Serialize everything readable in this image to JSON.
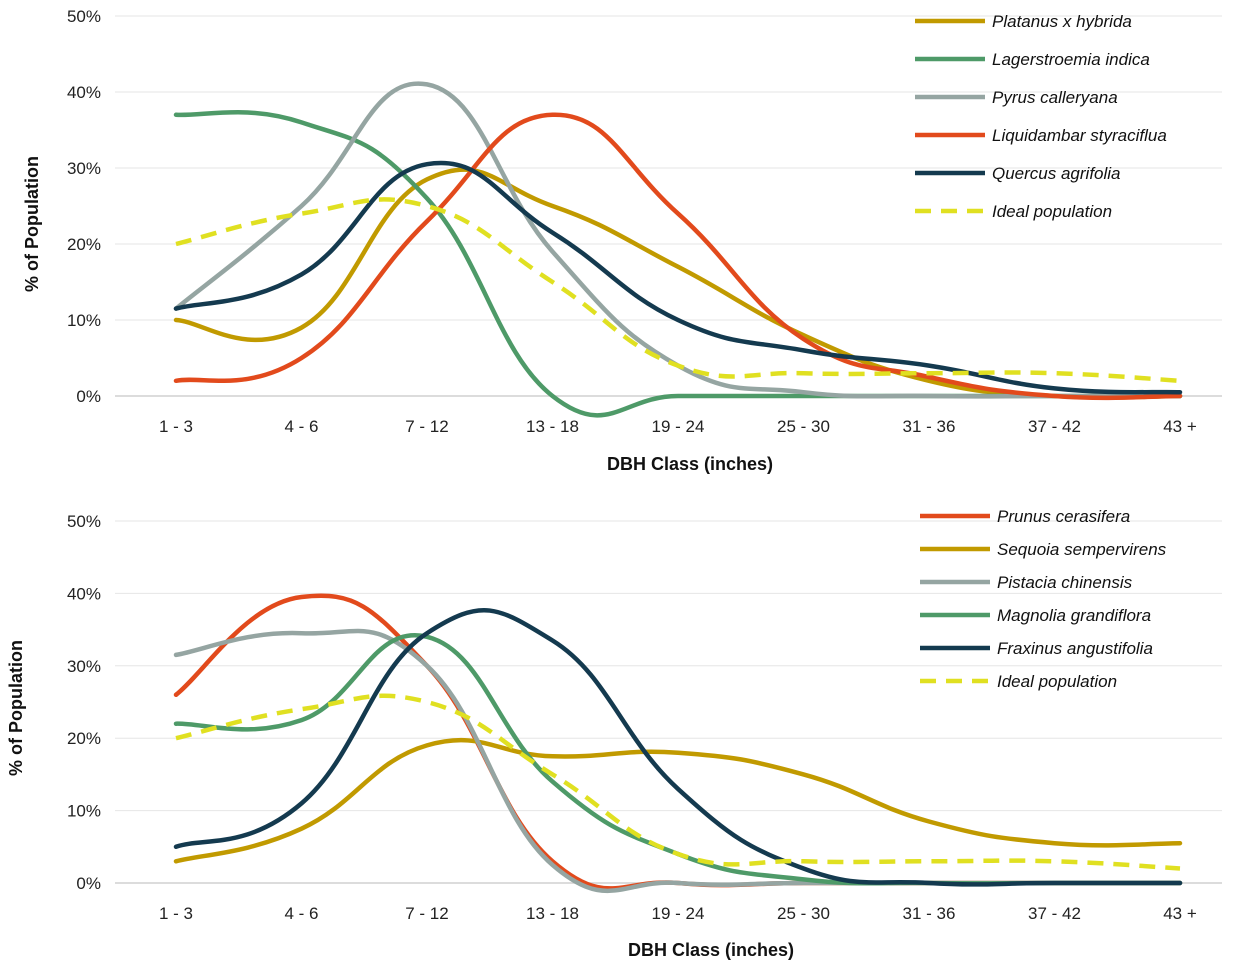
{
  "chart_data": [
    {
      "type": "line",
      "smooth": true,
      "title": "",
      "xlabel": "DBH Class (inches)",
      "ylabel": "% of Population",
      "categories": [
        "1 - 3",
        "4 - 6",
        "7 - 12",
        "13 - 18",
        "19 - 24",
        "25 - 30",
        "31 - 36",
        "37 - 42",
        "43 +"
      ],
      "ylim": [
        0,
        50
      ],
      "yticks": [
        0,
        10,
        20,
        30,
        40,
        50
      ],
      "ytick_labels": [
        "0%",
        "10%",
        "20%",
        "30%",
        "40%",
        "50%"
      ],
      "grid": true,
      "legend_position": "top-right",
      "series": [
        {
          "name": "Platanus x hybrida",
          "color": "#C19A00",
          "dash": false,
          "values": [
            10,
            9,
            28.5,
            25,
            17,
            8,
            2,
            0,
            0
          ]
        },
        {
          "name": "Lagerstroemia indica",
          "color": "#4E9A68",
          "dash": false,
          "values": [
            37,
            36,
            26,
            0,
            0,
            0,
            0,
            0,
            0
          ]
        },
        {
          "name": "Pyrus calleryana",
          "color": "#95A5A2",
          "dash": false,
          "values": [
            11.5,
            25,
            41,
            19,
            4,
            0.5,
            0,
            0,
            0
          ]
        },
        {
          "name": "Liquidambar styraciflua",
          "color": "#E24A1C",
          "dash": false,
          "values": [
            2,
            5,
            23,
            37,
            24,
            7.5,
            2.5,
            0,
            0
          ]
        },
        {
          "name": "Quercus agrifolia",
          "color": "#143A4F",
          "dash": false,
          "values": [
            11.5,
            16,
            30.5,
            21.5,
            10,
            6,
            4,
            1,
            0.5
          ]
        },
        {
          "name": "Ideal population",
          "color": "#E0E021",
          "dash": true,
          "values": [
            20,
            24,
            25,
            15,
            4,
            3,
            3,
            3,
            2
          ]
        }
      ]
    },
    {
      "type": "line",
      "smooth": true,
      "title": "",
      "xlabel": "DBH Class (inches)",
      "ylabel": "% of Population",
      "categories": [
        "1 - 3",
        "4 - 6",
        "7 - 12",
        "13 - 18",
        "19 - 24",
        "25 - 30",
        "31 - 36",
        "37 - 42",
        "43 +"
      ],
      "ylim": [
        0,
        50
      ],
      "yticks": [
        0,
        10,
        20,
        30,
        40,
        50
      ],
      "ytick_labels": [
        "0%",
        "10%",
        "20%",
        "30%",
        "40%",
        "50%"
      ],
      "grid": true,
      "legend_position": "top-right",
      "series": [
        {
          "name": "Prunus cerasifera",
          "color": "#E24A1C",
          "dash": false,
          "values": [
            26,
            39.5,
            30,
            3,
            0,
            0,
            0,
            0,
            0
          ]
        },
        {
          "name": "Sequoia sempervirens",
          "color": "#C19A00",
          "dash": false,
          "values": [
            3,
            7.5,
            19,
            17.5,
            18,
            15,
            8.5,
            5.5,
            5.5
          ]
        },
        {
          "name": "Pistacia chinensis",
          "color": "#95A5A2",
          "dash": false,
          "values": [
            31.5,
            34.5,
            30,
            2.5,
            0,
            0,
            0,
            0,
            0
          ]
        },
        {
          "name": "Magnolia grandiflora",
          "color": "#4E9A68",
          "dash": false,
          "values": [
            22,
            22.5,
            34,
            14,
            4,
            0.5,
            0,
            0,
            0
          ]
        },
        {
          "name": "Fraxinus angustifolia",
          "color": "#143A4F",
          "dash": false,
          "values": [
            5,
            11,
            34.5,
            33.5,
            13,
            2,
            0,
            0,
            0
          ]
        },
        {
          "name": "Ideal population",
          "color": "#E0E021",
          "dash": true,
          "values": [
            20,
            24,
            25,
            15,
            4,
            3,
            3,
            3,
            2
          ]
        }
      ]
    }
  ]
}
